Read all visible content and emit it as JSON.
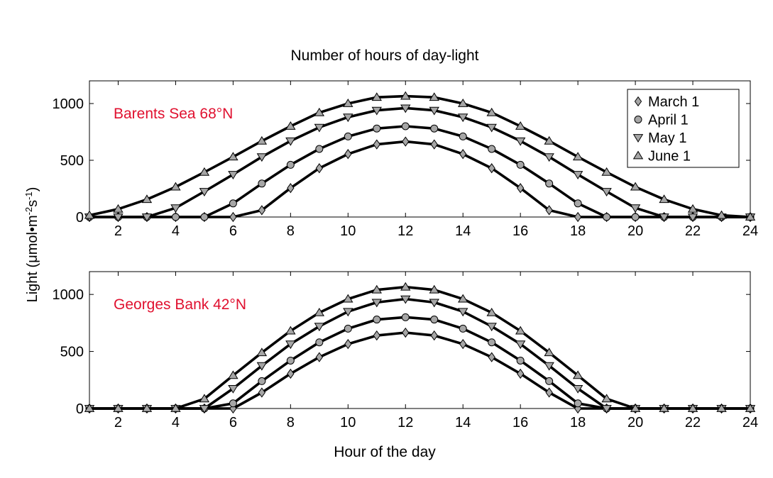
{
  "figure": {
    "title": "Number of hours of day-light",
    "ylabel_main": "Light (μmol•m",
    "ylabel_sup1": "-2",
    "ylabel_mid": "s",
    "ylabel_sup2": "-1",
    "ylabel_end": ")",
    "xlabel": "Hour of the day"
  },
  "colors": {
    "line": "#000000",
    "marker_fill": "#a6a6a6",
    "annotation": "#e0102f"
  },
  "chart_data": [
    {
      "type": "line",
      "annotation": "Barents Sea 68°N",
      "x": [
        1,
        2,
        3,
        4,
        5,
        6,
        7,
        8,
        9,
        10,
        11,
        12,
        13,
        14,
        15,
        16,
        17,
        18,
        19,
        20,
        21,
        22,
        23,
        24
      ],
      "xlim": [
        1,
        24
      ],
      "ylim": [
        0,
        1200
      ],
      "xticks": [
        2,
        4,
        6,
        8,
        10,
        12,
        14,
        16,
        18,
        20,
        22,
        24
      ],
      "yticks": [
        0,
        500,
        1000
      ],
      "legend_position": "top-right",
      "series": [
        {
          "name": "March 1",
          "marker": "diamond",
          "values": [
            0,
            0,
            0,
            0,
            0,
            0,
            60,
            255,
            430,
            555,
            640,
            665,
            640,
            555,
            430,
            255,
            60,
            0,
            0,
            0,
            0,
            0,
            0,
            0
          ]
        },
        {
          "name": "April 1",
          "marker": "circle",
          "values": [
            0,
            0,
            0,
            0,
            0,
            120,
            295,
            460,
            600,
            710,
            780,
            800,
            780,
            710,
            600,
            460,
            295,
            120,
            0,
            0,
            0,
            0,
            0,
            0
          ]
        },
        {
          "name": "May 1",
          "marker": "triangle-down",
          "values": [
            0,
            0,
            0,
            80,
            225,
            375,
            530,
            670,
            790,
            880,
            940,
            960,
            940,
            880,
            790,
            670,
            530,
            375,
            225,
            80,
            0,
            0,
            0,
            0
          ]
        },
        {
          "name": "June 1",
          "marker": "triangle-up",
          "values": [
            15,
            70,
            155,
            265,
            395,
            530,
            670,
            800,
            920,
            1000,
            1055,
            1065,
            1055,
            1000,
            920,
            800,
            670,
            530,
            395,
            265,
            155,
            70,
            15,
            0
          ]
        }
      ]
    },
    {
      "type": "line",
      "annotation": "Georges Bank 42°N",
      "x": [
        1,
        2,
        3,
        4,
        5,
        6,
        7,
        8,
        9,
        10,
        11,
        12,
        13,
        14,
        15,
        16,
        17,
        18,
        19,
        20,
        21,
        22,
        23,
        24
      ],
      "xlim": [
        1,
        24
      ],
      "ylim": [
        0,
        1200
      ],
      "xticks": [
        2,
        4,
        6,
        8,
        10,
        12,
        14,
        16,
        18,
        20,
        22,
        24
      ],
      "yticks": [
        0,
        500,
        1000
      ],
      "legend_position": "none",
      "series": [
        {
          "name": "March 1",
          "marker": "diamond",
          "values": [
            0,
            0,
            0,
            0,
            0,
            0,
            140,
            305,
            450,
            565,
            640,
            665,
            640,
            565,
            450,
            305,
            140,
            0,
            0,
            0,
            0,
            0,
            0,
            0
          ]
        },
        {
          "name": "April 1",
          "marker": "circle",
          "values": [
            0,
            0,
            0,
            0,
            0,
            45,
            240,
            420,
            580,
            700,
            780,
            800,
            780,
            700,
            580,
            420,
            240,
            45,
            0,
            0,
            0,
            0,
            0,
            0
          ]
        },
        {
          "name": "May 1",
          "marker": "triangle-down",
          "values": [
            0,
            0,
            0,
            0,
            0,
            175,
            375,
            565,
            720,
            850,
            930,
            960,
            930,
            850,
            720,
            565,
            375,
            175,
            0,
            0,
            0,
            0,
            0,
            0
          ]
        },
        {
          "name": "June 1",
          "marker": "triangle-up",
          "values": [
            0,
            0,
            0,
            0,
            85,
            290,
            490,
            680,
            840,
            960,
            1040,
            1065,
            1040,
            960,
            840,
            680,
            490,
            290,
            85,
            0,
            0,
            0,
            0,
            0
          ]
        }
      ]
    }
  ]
}
